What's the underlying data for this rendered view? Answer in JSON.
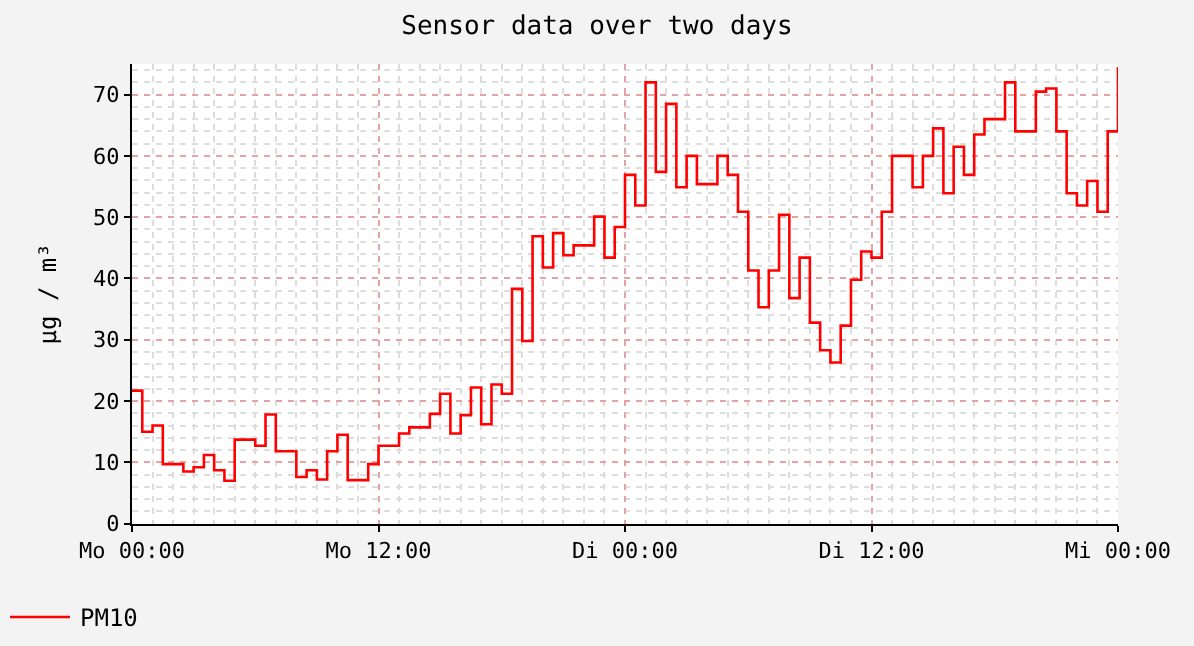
{
  "chart_data": {
    "type": "step",
    "title": "Sensor data over two days",
    "ylabel": "µg / m³",
    "categories": [
      "Mo 00:00",
      null,
      null,
      null,
      null,
      null,
      null,
      null,
      null,
      null,
      null,
      null,
      null,
      null,
      null,
      null,
      null,
      null,
      null,
      null,
      null,
      null,
      null,
      null,
      "Mo 12:00",
      null,
      null,
      null,
      null,
      null,
      null,
      null,
      null,
      null,
      null,
      null,
      null,
      null,
      null,
      null,
      null,
      null,
      null,
      null,
      null,
      null,
      null,
      null,
      "Di 00:00",
      null,
      null,
      null,
      null,
      null,
      null,
      null,
      null,
      null,
      null,
      null,
      null,
      null,
      null,
      null,
      null,
      null,
      null,
      null,
      null,
      null,
      null,
      null,
      "Di 12:00",
      null,
      null,
      null,
      null,
      null,
      null,
      null,
      null,
      null,
      null,
      null,
      null,
      null,
      null,
      null,
      null,
      null,
      null,
      null,
      null,
      null,
      null,
      null,
      "Mi 00:00"
    ],
    "series": [
      {
        "name": "PM10",
        "color": "#ff0000",
        "values": [
          21.7,
          15,
          16,
          9.7,
          9.7,
          8.5,
          9.2,
          11.2,
          8.7,
          7,
          13.7,
          13.7,
          12.7,
          17.8,
          11.8,
          11.8,
          7.6,
          8.7,
          7.2,
          11.8,
          14.5,
          7.1,
          7.1,
          9.7,
          12.7,
          12.7,
          14.7,
          15.7,
          15.7,
          17.9,
          21.2,
          14.7,
          17.7,
          22.2,
          16.2,
          22.7,
          21.2,
          38.3,
          29.8,
          46.9,
          41.8,
          47.4,
          43.8,
          45.4,
          45.4,
          50.1,
          43.4,
          48.4,
          56.9,
          51.9,
          72,
          57.4,
          68.5,
          54.9,
          60,
          55.4,
          55.4,
          60,
          56.9,
          50.9,
          41.3,
          35.3,
          41.3,
          50.4,
          36.8,
          43.4,
          32.8,
          28.3,
          26.3,
          32.3,
          39.8,
          44.4,
          43.4,
          50.9,
          60,
          60,
          54.9,
          60,
          64.5,
          53.9,
          61.5,
          56.9,
          63.5,
          66,
          66,
          72,
          64,
          64,
          70.5,
          71,
          64,
          53.9,
          51.9,
          55.9,
          50.9,
          64,
          74.5
        ]
      }
    ],
    "ylim": [
      0,
      75
    ],
    "yticks": [
      0,
      10,
      20,
      30,
      40,
      50,
      60,
      70
    ],
    "grid": true,
    "legend": "bottom left",
    "line_style": "solid",
    "marker": "none"
  }
}
